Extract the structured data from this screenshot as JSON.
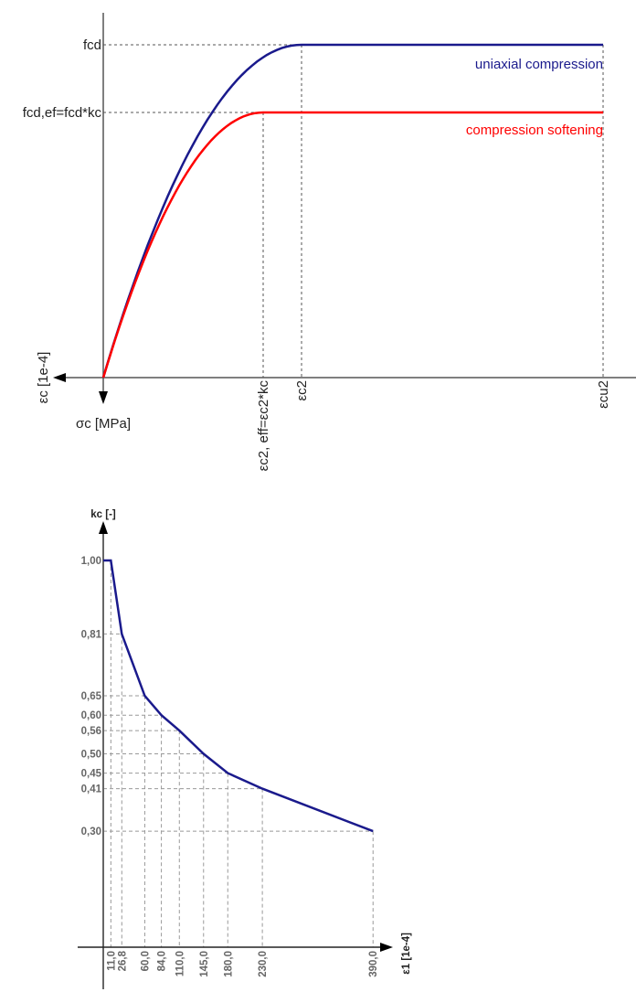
{
  "chart_data": [
    {
      "type": "line",
      "xlabel": "εc [1e-4]",
      "ylabel": "σc [MPa]",
      "x_ticks": [
        "εc2, eff=εc2*kc",
        "εc2",
        "εcu2"
      ],
      "y_ticks": [
        "fcd,ef=fcd*kc",
        "fcd"
      ],
      "grid": "dashed guide lines to ticks",
      "series": [
        {
          "name": "uniaxial compression",
          "color": "#1a1a8c",
          "shape": "parabola to εc2 at fcd, then constant to εcu2"
        },
        {
          "name": "compression softening",
          "color": "#ff0000",
          "shape": "parabola to εc2,eff at fcd,ef, then constant to εcu2"
        }
      ]
    },
    {
      "type": "line",
      "xlabel": "ε1 [1e-4]",
      "ylabel": "kc [-]",
      "x": [
        0,
        11.0,
        26.8,
        60.0,
        84.0,
        110.0,
        145.0,
        180.0,
        230.0,
        390.0
      ],
      "y": [
        1.0,
        1.0,
        0.81,
        0.65,
        0.6,
        0.56,
        0.5,
        0.45,
        0.41,
        0.3
      ],
      "x_tick_labels": [
        "11,0",
        "26,8",
        "60,0",
        "84,0",
        "110,0",
        "145,0",
        "180,0",
        "230,0",
        "390,0"
      ],
      "y_tick_labels": [
        "1,00",
        "0,81",
        "0,65",
        "0,60",
        "0,56",
        "0,50",
        "0,45",
        "0,41",
        "0,30"
      ],
      "grid": "dashed guide lines to ticks",
      "color": "#1a1a8c"
    }
  ]
}
